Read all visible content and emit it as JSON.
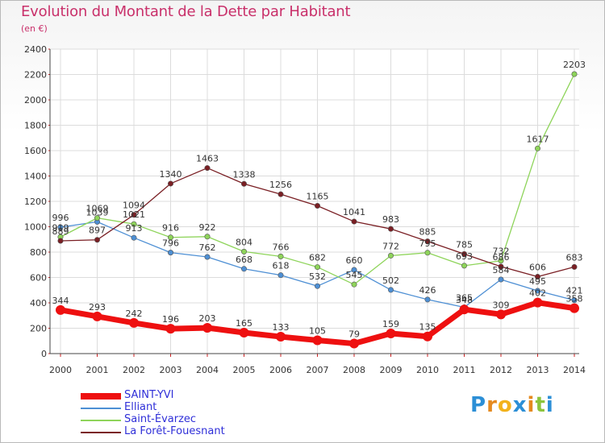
{
  "header": {
    "title": "Evolution du Montant de la Dette par Habitant",
    "subtitle": "(en €)"
  },
  "logo": {
    "letters": [
      "P",
      "r",
      "o",
      "x",
      "i",
      "t",
      "i"
    ],
    "colors": [
      "#2c8fd6",
      "#e58a1f",
      "#f2b21c",
      "#2c8fd6",
      "#e58a1f",
      "#8cc43c",
      "#2c8fd6"
    ]
  },
  "chart_data": {
    "type": "line",
    "title": "Evolution du Montant de la Dette par Habitant",
    "ylabel": "(en €)",
    "xlabel": "",
    "x": [
      "2000",
      "2001",
      "2002",
      "2003",
      "2004",
      "2005",
      "2006",
      "2007",
      "2008",
      "2009",
      "2010",
      "2011",
      "2012",
      "2013",
      "2014"
    ],
    "ylim": [
      0,
      2400
    ],
    "yticks": [
      "0",
      "200",
      "400",
      "600",
      "800",
      "1000",
      "1200",
      "1400",
      "1600",
      "1800",
      "2000",
      "2200",
      "2400"
    ],
    "grid": true,
    "legend_position": "bottom-left",
    "series": [
      {
        "name": "SAINT-YVI",
        "color": "#ee1010",
        "values": [
          344,
          293,
          242,
          196,
          203,
          165,
          133,
          105,
          79,
          159,
          135,
          348,
          309,
          402,
          358
        ]
      },
      {
        "name": "Elliant",
        "color": "#4d8fd4",
        "values": [
          996,
          1039,
          913,
          796,
          762,
          668,
          618,
          532,
          660,
          502,
          426,
          365,
          584,
          495,
          421
        ]
      },
      {
        "name": "Saint-Évarzec",
        "color": "#8ed45a",
        "values": [
          919,
          1069,
          1021,
          916,
          922,
          804,
          766,
          682,
          545,
          772,
          795,
          693,
          732,
          1617,
          2203
        ]
      },
      {
        "name": "La Forêt-Fouesnant",
        "color": "#7a1f24",
        "values": [
          889,
          897,
          1094,
          1340,
          1463,
          1338,
          1256,
          1165,
          1041,
          983,
          885,
          785,
          686,
          606,
          683
        ]
      }
    ]
  }
}
